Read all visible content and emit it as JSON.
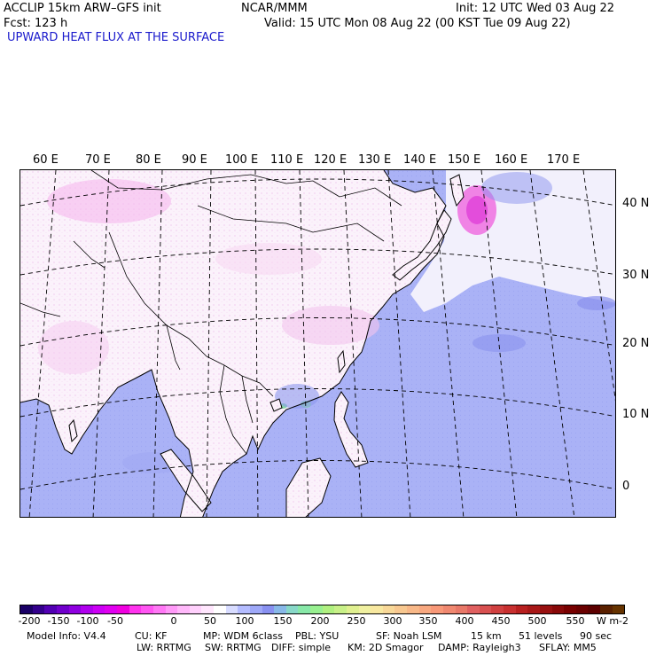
{
  "header": {
    "model_line": "ACCLIP 15km ARW–GFS init",
    "center": "NCAR/MMM",
    "init": "Init: 12 UTC Wed 03 Aug 22",
    "fcst": "Fcst:  123 h",
    "valid": "Valid: 15 UTC Mon 08 Aug 22 (00 KST Tue 09 Aug 22)",
    "field": "UPWARD HEAT FLUX AT THE SURFACE"
  },
  "map": {
    "lon_labels": [
      "60 E",
      "70 E",
      "80 E",
      "90 E",
      "100 E",
      "110 E",
      "120 E",
      "130 E",
      "140 E",
      "150 E",
      "160 E",
      "170 E"
    ],
    "lat_labels": [
      "40 N",
      "30 N",
      "20 N",
      "10 N",
      "0"
    ]
  },
  "colorbar": {
    "tick_labels": [
      "-200",
      "-150",
      "-100",
      "-50",
      "0",
      "50",
      "100",
      "150",
      "200",
      "250",
      "300",
      "350",
      "400",
      "450",
      "500",
      "550"
    ],
    "unit": "W m-2",
    "colors": [
      "#1a0066",
      "#33008c",
      "#5200b3",
      "#7000cc",
      "#8f00e0",
      "#b000ee",
      "#cc00f5",
      "#e000f0",
      "#f000e0",
      "#ff33ee",
      "#ff55f2",
      "#ff77f5",
      "#ff99f8",
      "#ffb8fa",
      "#ffd0fc",
      "#ffe6fd",
      "#ffffff",
      "#d8dcff",
      "#b4bcff",
      "#9ea8f8",
      "#8890f0",
      "#88b8e8",
      "#88d8c8",
      "#88e8a8",
      "#98f090",
      "#b0f080",
      "#c8f088",
      "#e0f090",
      "#f0f0a0",
      "#f8e8a0",
      "#f8d898",
      "#f8c890",
      "#f8b888",
      "#f8a880",
      "#f89878",
      "#f08870",
      "#e87868",
      "#e06060",
      "#d85050",
      "#d04040",
      "#c83030",
      "#b82020",
      "#a81818",
      "#981010",
      "#880808",
      "#780000",
      "#6a0000",
      "#5c0000",
      "#5a2000",
      "#663300"
    ]
  },
  "footer": {
    "line1": [
      "Model Info: V4.4",
      "CU: KF",
      "MP: WDM 6class",
      "PBL: YSU",
      "SF: Noah LSM",
      "15 km",
      "51 levels",
      "90 sec"
    ],
    "line2": [
      "LW: RRTMG",
      "SW: RRTMG",
      "DIFF: simple",
      "KM: 2D Smagor",
      "DAMP: Rayleigh3",
      "SFLAY: MM5"
    ]
  }
}
